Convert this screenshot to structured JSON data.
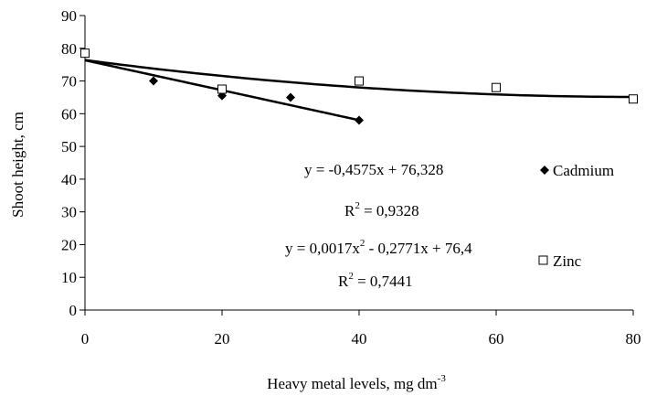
{
  "chart_data": {
    "type": "scatter",
    "title": "",
    "xlabel": "Heavy metal levels, mg dm",
    "xlabel_superscript": "-3",
    "ylabel": "Shoot height, cm",
    "xlim": [
      0,
      80
    ],
    "ylim": [
      0,
      90
    ],
    "x_ticks": [
      0,
      20,
      40,
      60,
      80
    ],
    "y_ticks": [
      0,
      10,
      20,
      30,
      40,
      50,
      60,
      70,
      80,
      90
    ],
    "grid": false,
    "legend_position": "right",
    "series": [
      {
        "name": "Cadmium",
        "marker": "diamond-filled",
        "color": "#000000",
        "x": [
          0,
          10,
          20,
          30,
          40
        ],
        "y": [
          78.5,
          70,
          65.5,
          65,
          58
        ],
        "trendline": {
          "kind": "linear",
          "a": -0.4575,
          "b": 76.328,
          "x_range": [
            0,
            40
          ]
        },
        "equation": "y = -0,4575x + 76,328",
        "r2_label": "R",
        "r2_value": " = 0,9328"
      },
      {
        "name": "Zinc",
        "marker": "square-open",
        "color": "#000000",
        "x": [
          0,
          20,
          40,
          60,
          80
        ],
        "y": [
          78.5,
          67.5,
          70,
          68,
          64.5
        ],
        "trendline": {
          "kind": "poly2",
          "a": 0.0017,
          "b": -0.2771,
          "c": 76.4,
          "x_range": [
            0,
            80
          ]
        },
        "equation_parts": [
          "y = 0,0017x",
          " - 0,2771x + 76,4"
        ],
        "r2_label": "R",
        "r2_value": " = 0,7441"
      }
    ]
  }
}
